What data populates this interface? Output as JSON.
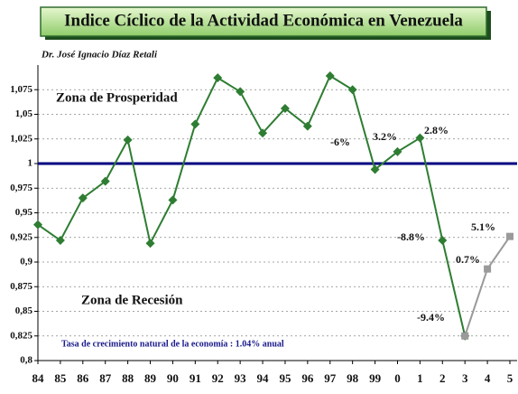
{
  "chart_data": {
    "type": "line",
    "title": "Indice Cíclico de la Actividad Económica en Venezuela",
    "subtitle": "Dr. José Ignacio Díaz Retali",
    "categories": [
      "84",
      "85",
      "86",
      "87",
      "88",
      "89",
      "90",
      "91",
      "92",
      "93",
      "94",
      "95",
      "96",
      "97",
      "98",
      "99",
      "0",
      "1",
      "2",
      "3",
      "4",
      "5"
    ],
    "series": [
      {
        "color": "#2e7d32",
        "marker": "diamond",
        "values": [
          0.938,
          0.922,
          0.965,
          0.982,
          1.024,
          0.919,
          0.963,
          1.04,
          1.087,
          1.073,
          1.031,
          1.056,
          1.038,
          1.089,
          1.075,
          0.994,
          1.012,
          1.026,
          0.922,
          0.825,
          null,
          null
        ]
      },
      {
        "color": "#9a9a9a",
        "marker": "square",
        "values": [
          null,
          null,
          null,
          null,
          null,
          null,
          null,
          null,
          null,
          null,
          null,
          null,
          null,
          null,
          null,
          null,
          null,
          null,
          null,
          0.825,
          0.893,
          0.926
        ]
      }
    ],
    "reference_line": 1,
    "reference_color": "#000080",
    "ylim": [
      0.8,
      1.1
    ],
    "yticks": [
      {
        "value": 0.8,
        "label": "0,8"
      },
      {
        "value": 0.825,
        "label": "0,825"
      },
      {
        "value": 0.85,
        "label": "0,85"
      },
      {
        "value": 0.875,
        "label": "0,875"
      },
      {
        "value": 0.9,
        "label": "0,9"
      },
      {
        "value": 0.925,
        "label": "0,925"
      },
      {
        "value": 0.95,
        "label": "0,95"
      },
      {
        "value": 0.975,
        "label": "0,975"
      },
      1,
      {
        "value": 1.025,
        "label": "1,025"
      },
      {
        "value": 1.05,
        "label": "1,05"
      },
      {
        "value": 1.075,
        "label": "1,075"
      }
    ],
    "grid": true,
    "annotations": [
      "Zona de Prosperidad",
      "Zona de Recesión",
      "Tasa de crecimiento natural de la economía : 1.04% anual",
      "-6%",
      "3.2%",
      "2.8%",
      "-8.8%",
      "-9.4%",
      "0.7%",
      "5.1%"
    ]
  }
}
